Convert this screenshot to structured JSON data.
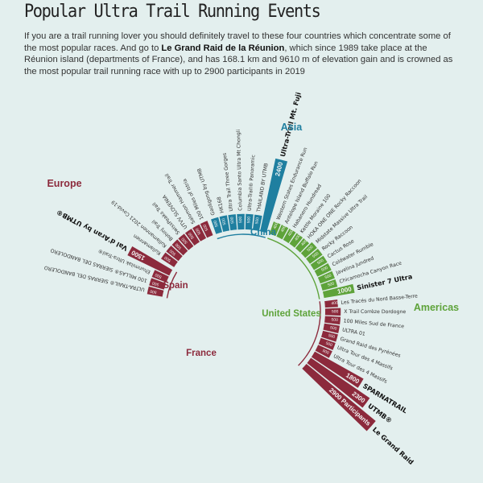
{
  "title": "Popular Ultra Trail Running Events",
  "subtitle": {
    "pre": "If you are a trail running lover you should definitely travel to these four countries which concentrate some of the most popular races. And go to ",
    "bold": "Le Grand Raid de la Réunion",
    "post": ", which since 1989 take place at the Réunion island (departments of France), and has 168.1 km and 9610 m of elevation gain and is crowned as the most popular trail running race with up to 2900 participants in 2019"
  },
  "colors": {
    "europe": "#8c2a3c",
    "asia": "#1f7fa0",
    "americas": "#5ea33a",
    "background": "#e3efee"
  },
  "chart_data": {
    "type": "bar",
    "layout": "radial",
    "title": "Popular Ultra Trail Running Events",
    "region_labels": [
      {
        "region": "Europe",
        "label": "Europe"
      },
      {
        "region": "Asia",
        "label": "Asia"
      },
      {
        "region": "Americas",
        "label": "Americas"
      }
    ],
    "country_labels": [
      {
        "region": "Europe",
        "label": "Spain"
      },
      {
        "region": "Europe",
        "label": "France"
      },
      {
        "region": "Asia",
        "label": "China"
      },
      {
        "region": "Americas",
        "label": "United States"
      }
    ],
    "series": [
      {
        "region": "Europe",
        "country": "Spain",
        "values": [
          {
            "name": "ULTRA-TRAIL® SIERRAS DEL BANDOLERO",
            "value": 500,
            "label": "500"
          },
          {
            "name": "100 MILLAS® SIERRAS DEL BANDOLERO",
            "value": 500,
            "label": "500"
          },
          {
            "name": "Ehunmilak Ultra-Trail®",
            "value": 500,
            "label": "500"
          },
          {
            "name": "Val d'Aran by UTMB®",
            "value": 1500,
            "label": "1500"
          }
        ]
      },
      {
        "region": "Europe",
        "country": "Other",
        "values": [
          {
            "name": "Kullamannen",
            "value": 500,
            "label": "500"
          },
          {
            "name": "Kullamannen 2021 Covid-19",
            "value": 500,
            "label": "500"
          },
          {
            "name": "Bohinj Trail",
            "value": 500,
            "label": "500"
          },
          {
            "name": "SwissPeaks Trail",
            "value": 500,
            "label": "500"
          },
          {
            "name": "UTVV SLOVENIA",
            "value": 500,
            "label": "500"
          },
          {
            "name": "Salomon Hammer Trail",
            "value": 500,
            "label": "500"
          },
          {
            "name": "100 Miles of Istria",
            "value": 500,
            "label": "500"
          }
        ]
      },
      {
        "region": "Asia",
        "country": "China",
        "values": [
          {
            "name": "Gaoligong by UTMB",
            "value": 500,
            "label": "500"
          },
          {
            "name": "HK168",
            "value": 500,
            "label": "500"
          },
          {
            "name": "Ultra Trail Three Gorges",
            "value": 500,
            "label": "500"
          },
          {
            "name": "Columbia Santo Ultra Mt Chongli",
            "value": 500,
            "label": "500"
          },
          {
            "name": "Ultra-Trail® Panoramic",
            "value": 500,
            "label": "500"
          },
          {
            "name": "THAILAND BY UTMB",
            "value": 500,
            "label": "500"
          },
          {
            "name": "Ultra-Trail Mt. Fuji",
            "value": 2400,
            "label": "2400"
          }
        ]
      },
      {
        "region": "Americas",
        "country": "United States",
        "values": [
          {
            "name": "Western States Endurance Run",
            "value": 400,
            "label": "400"
          },
          {
            "name": "Antelope Island Buffalo Run",
            "value": 400,
            "label": "400"
          },
          {
            "name": "Habanero Hundread",
            "value": 400,
            "label": "400"
          },
          {
            "name": "Kettle Moraine 100",
            "value": 400,
            "label": "400"
          },
          {
            "name": "HOKA ONE ONE Rocky Raccoon",
            "value": 400,
            "label": "400"
          },
          {
            "name": "Midstate Massive Ultra Trail",
            "value": 500,
            "label": "500"
          },
          {
            "name": "Rocky Raccoon",
            "value": 500,
            "label": "500"
          },
          {
            "name": "Cactus Rose",
            "value": 500,
            "label": "500"
          },
          {
            "name": "Coldwater Rumble",
            "value": 500,
            "label": "500"
          },
          {
            "name": "Javelina Jundred",
            "value": 500,
            "label": "500"
          },
          {
            "name": "Chicamocha Canyon Race",
            "value": 500,
            "label": "500"
          },
          {
            "name": "Sinister 7 Ultra",
            "value": 1000,
            "label": "1000"
          }
        ]
      },
      {
        "region": "Europe",
        "country": "France",
        "values": [
          {
            "name": "Les Tracés du Nord Basse-Terre",
            "value": 400,
            "label": "400"
          },
          {
            "name": "X Trail Corrèze Dordogne",
            "value": 500,
            "label": "500"
          },
          {
            "name": "100 Miles Sud de France",
            "value": 500,
            "label": "500"
          },
          {
            "name": "ULTRA 01",
            "value": 500,
            "label": "500"
          },
          {
            "name": "Grand Raid des Pyrénées",
            "value": 500,
            "label": "500"
          },
          {
            "name": "Ultra Tour des 4 Massifs",
            "value": 500,
            "label": "500"
          },
          {
            "name": "Ultra Tour des 4 Massifs",
            "value": 500,
            "label": "500"
          },
          {
            "name": "SPARNATRAIL",
            "value": 1800,
            "label": "1800"
          },
          {
            "name": "UTMB®",
            "value": 2300,
            "label": "2300"
          },
          {
            "name": "Le Grand Raid",
            "value": 2900,
            "label": "2900 Participants"
          }
        ]
      }
    ]
  }
}
